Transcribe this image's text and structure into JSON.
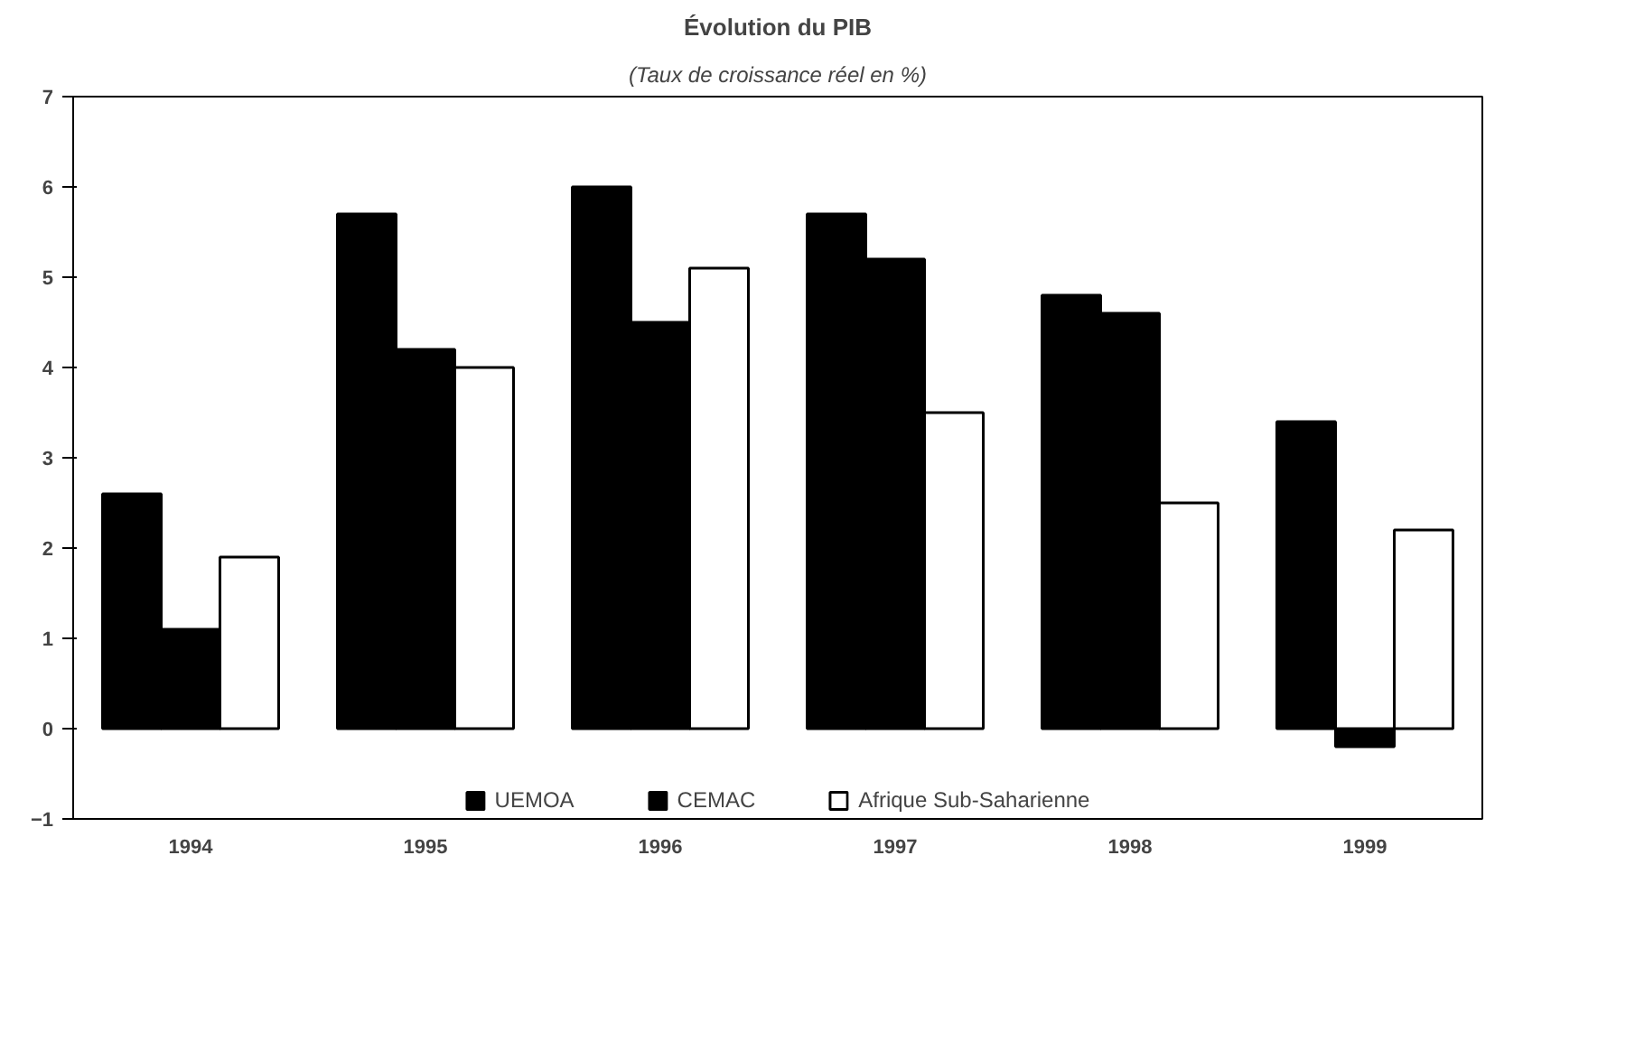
{
  "chart_data": {
    "type": "bar",
    "title": "Évolution du PIB",
    "subtitle": "(Taux de croissance réel en %)",
    "categories": [
      "1994",
      "1995",
      "1996",
      "1997",
      "1998",
      "1999"
    ],
    "series": [
      {
        "name": "UEMOA",
        "color": "#000000",
        "values": [
          2.6,
          5.7,
          6.0,
          5.7,
          4.8,
          3.4
        ]
      },
      {
        "name": "CEMAC",
        "color": "#000000",
        "values": [
          1.1,
          4.2,
          4.5,
          5.2,
          4.6,
          -0.2
        ]
      },
      {
        "name": "Afrique Sub-Saharienne",
        "color": "#ffffff",
        "values": [
          1.9,
          4.0,
          5.1,
          3.5,
          2.5,
          2.2
        ]
      }
    ],
    "ylim": [
      -1,
      7
    ],
    "yticks": [
      -1,
      0,
      1,
      2,
      3,
      4,
      5,
      6,
      7
    ],
    "grid": false,
    "legend": "bottom"
  }
}
